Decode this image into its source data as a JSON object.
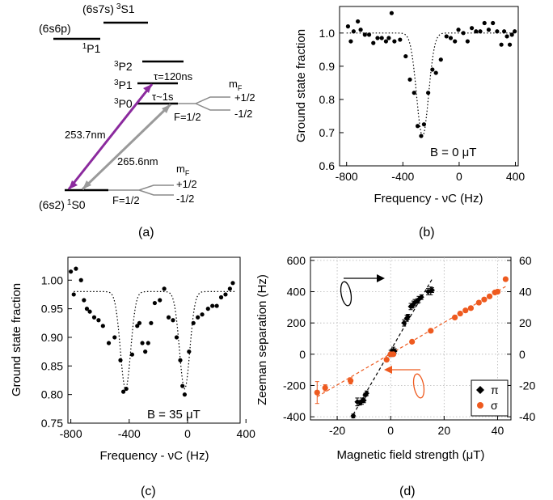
{
  "panel_labels": {
    "a": "(a)",
    "b": "(b)",
    "c": "(c)",
    "d": "(d)"
  },
  "level_diagram": {
    "levels": {
      "s7s_config": "(6s7s)",
      "s7s_term": "3",
      "s7s_sub": "S1",
      "p6p_config": "(6s6p)",
      "p6p_term": "1",
      "p6p_sub": "P1",
      "p2_sup": "3",
      "p2_main": "P2",
      "p1_sup": "3",
      "p1_main": "P1",
      "p0_sup": "3",
      "p0_main": "P0",
      "ground_config": "(6s2)",
      "ground_sup": "1",
      "ground_main": "S0"
    },
    "annotations": {
      "tau_p1": "τ=120ns",
      "tau_p0": "τ~1s",
      "wavelength_1": "253.7nm",
      "wavelength_2": "265.6nm",
      "mf_label": "mF",
      "f_label": "F=1/2",
      "plus_half": "+1/2",
      "minus_half": "-1/2"
    },
    "colors": {
      "arrow_253": "#8b2a9e",
      "arrow_265": "#9a9a9a"
    }
  },
  "chart_data": [
    {
      "id": "b",
      "type": "scatter",
      "xlabel": "Frequency - νC (Hz)",
      "ylabel": "Ground state fraction",
      "annotation": "B = 0 μT",
      "xlim": [
        -850,
        420
      ],
      "ylim": [
        0.6,
        1.08
      ],
      "xticks": [
        -800,
        -400,
        0,
        400
      ],
      "yticks": [
        0.6,
        0.7,
        0.8,
        0.9,
        1.0
      ],
      "ytick_labels": [
        "0.6",
        "0.7",
        "0.8",
        "0.9",
        "1.0"
      ],
      "points": [
        [
          -790,
          1.02
        ],
        [
          -770,
          0.975
        ],
        [
          -750,
          1.005
        ],
        [
          -720,
          1.035
        ],
        [
          -700,
          1.01
        ],
        [
          -670,
          0.995
        ],
        [
          -640,
          0.995
        ],
        [
          -610,
          0.97
        ],
        [
          -580,
          0.985
        ],
        [
          -550,
          0.985
        ],
        [
          -520,
          0.975
        ],
        [
          -500,
          0.985
        ],
        [
          -480,
          1.06
        ],
        [
          -460,
          0.975
        ],
        [
          -420,
          0.98
        ],
        [
          -380,
          0.93
        ],
        [
          -350,
          0.86
        ],
        [
          -320,
          0.82
        ],
        [
          -295,
          0.72
        ],
        [
          -270,
          0.69
        ],
        [
          -250,
          0.725
        ],
        [
          -220,
          0.82
        ],
        [
          -190,
          0.89
        ],
        [
          -165,
          0.88
        ],
        [
          -130,
          0.92
        ],
        [
          -90,
          0.99
        ],
        [
          -60,
          0.985
        ],
        [
          -30,
          0.975
        ],
        [
          -5,
          1.01
        ],
        [
          30,
          1.0
        ],
        [
          60,
          0.975
        ],
        [
          90,
          1.015
        ],
        [
          120,
          1.005
        ],
        [
          150,
          1.005
        ],
        [
          180,
          1.03
        ],
        [
          210,
          1.01
        ],
        [
          240,
          1.03
        ],
        [
          270,
          1.005
        ],
        [
          300,
          0.965
        ],
        [
          320,
          1.005
        ],
        [
          340,
          0.99
        ],
        [
          360,
          0.965
        ],
        [
          375,
          0.995
        ],
        [
          395,
          1.005
        ]
      ],
      "fit": {
        "baseline": 1.0,
        "center": -260,
        "depth": 0.31,
        "width": 60
      }
    },
    {
      "id": "c",
      "type": "scatter",
      "xlabel": "Frequency - νC (Hz)",
      "ylabel": "Ground state fraction",
      "annotation": "B = 35 μT",
      "xlim": [
        -820,
        360
      ],
      "ylim": [
        0.75,
        1.04
      ],
      "xticks": [
        -800,
        -400,
        0,
        400
      ],
      "yticks": [
        0.75,
        0.8,
        0.85,
        0.9,
        0.95,
        1.0
      ],
      "ytick_labels": [
        "0.75",
        "0.80",
        "0.85",
        "0.90",
        "0.95",
        "1.00"
      ],
      "points": [
        [
          -800,
          1.015
        ],
        [
          -780,
          0.975
        ],
        [
          -765,
          1.02
        ],
        [
          -730,
          1.0
        ],
        [
          -710,
          0.965
        ],
        [
          -690,
          0.95
        ],
        [
          -670,
          0.945
        ],
        [
          -640,
          0.935
        ],
        [
          -610,
          0.93
        ],
        [
          -580,
          0.92
        ],
        [
          -540,
          0.89
        ],
        [
          -500,
          0.9
        ],
        [
          -460,
          0.86
        ],
        [
          -440,
          0.805
        ],
        [
          -420,
          0.81
        ],
        [
          -380,
          0.87
        ],
        [
          -345,
          0.92
        ],
        [
          -330,
          0.925
        ],
        [
          -310,
          0.89
        ],
        [
          -290,
          0.875
        ],
        [
          -270,
          0.89
        ],
        [
          -250,
          0.925
        ],
        [
          -225,
          0.96
        ],
        [
          -190,
          0.965
        ],
        [
          -160,
          0.985
        ],
        [
          -130,
          0.935
        ],
        [
          -100,
          0.93
        ],
        [
          -75,
          0.9
        ],
        [
          -50,
          0.86
        ],
        [
          -35,
          0.815
        ],
        [
          -20,
          0.8
        ],
        [
          10,
          0.875
        ],
        [
          40,
          0.925
        ],
        [
          70,
          0.935
        ],
        [
          100,
          0.94
        ],
        [
          140,
          0.95
        ],
        [
          170,
          0.955
        ],
        [
          200,
          0.955
        ],
        [
          230,
          0.97
        ],
        [
          260,
          0.975
        ],
        [
          290,
          0.985
        ],
        [
          310,
          0.995
        ]
      ],
      "fit": {
        "baseline": 0.98,
        "dips": [
          {
            "center": -425,
            "depth": 0.17,
            "width": 50
          },
          {
            "center": -20,
            "depth": 0.17,
            "width": 50
          }
        ]
      }
    },
    {
      "id": "d",
      "type": "scatter",
      "xlabel": "Magnetic field strength (μT)",
      "ylabel": "Zeeman separation (Hz)",
      "xlim": [
        -30,
        45
      ],
      "ylim": [
        -420,
        620
      ],
      "xticks": [
        -20,
        0,
        20,
        40
      ],
      "yticks": [
        -400,
        -200,
        0,
        200,
        400,
        600
      ],
      "y2lim": [
        -42,
        62
      ],
      "y2ticks": [
        -40,
        -20,
        0,
        20,
        40,
        60
      ],
      "legend": {
        "position": "bottom-right",
        "entries": [
          "π",
          "σ"
        ]
      },
      "series": [
        {
          "name": "π",
          "marker": "diamond",
          "color": "#000000",
          "axis": "left",
          "points": [
            [
              -14,
              -395,
              12
            ],
            [
              -12.5,
              -305,
              25
            ],
            [
              -11.5,
              -310,
              15
            ],
            [
              -10.8,
              -300,
              20
            ],
            [
              -10,
              -295,
              15
            ],
            [
              -9.5,
              -260,
              10
            ],
            [
              -9,
              -250,
              15
            ],
            [
              0,
              5,
              20
            ],
            [
              0.5,
              15,
              15
            ],
            [
              1,
              25,
              20
            ],
            [
              1.5,
              20,
              15
            ],
            [
              5,
              200,
              20
            ],
            [
              6,
              230,
              20
            ],
            [
              6.5,
              240,
              15
            ],
            [
              7.5,
              305,
              20
            ],
            [
              8,
              310,
              15
            ],
            [
              8.5,
              320,
              20
            ],
            [
              9,
              330,
              20
            ],
            [
              10,
              340,
              15
            ],
            [
              10.5,
              350,
              20
            ],
            [
              11.5,
              365,
              15
            ],
            [
              14,
              400,
              20
            ],
            [
              15,
              405,
              25
            ],
            [
              15.5,
              410,
              15
            ]
          ]
        },
        {
          "name": "σ",
          "marker": "circle",
          "color": "#ee5a1f",
          "axis": "right",
          "points": [
            [
              -27.5,
              -24.5,
              7
            ],
            [
              -24.5,
              -21.5,
              2
            ],
            [
              -15,
              -17,
              2
            ],
            [
              -1.5,
              -3.5,
              1
            ],
            [
              0,
              0,
              1
            ],
            [
              1,
              0,
              1
            ],
            [
              8,
              8,
              1
            ],
            [
              15,
              15,
              1
            ],
            [
              24,
              23.5,
              1
            ],
            [
              26,
              26,
              1
            ],
            [
              28,
              28,
              1
            ],
            [
              30,
              29.5,
              1
            ],
            [
              33,
              33,
              1
            ],
            [
              35,
              35,
              1
            ],
            [
              37,
              37,
              1
            ],
            [
              39,
              39.5,
              1
            ],
            [
              40,
              40,
              1
            ],
            [
              43,
              48,
              1
            ]
          ]
        }
      ]
    }
  ]
}
